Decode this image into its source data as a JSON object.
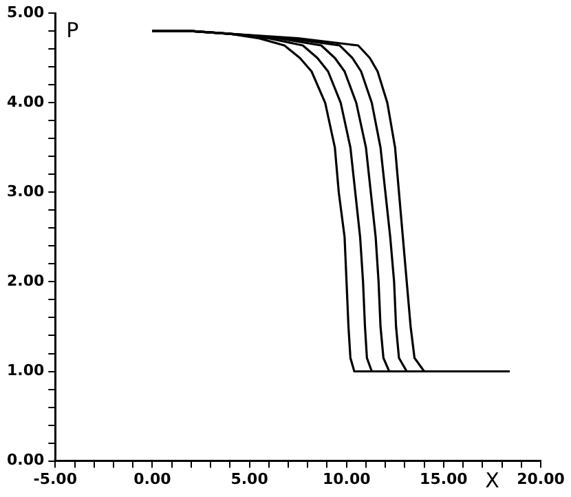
{
  "chart_data": {
    "type": "line",
    "xlabel": "X",
    "ylabel": "P",
    "xlim": [
      -5,
      20
    ],
    "ylim": [
      0,
      5
    ],
    "xticks": [
      {
        "value": -5,
        "label": "-5.00"
      },
      {
        "value": -4,
        "label": null
      },
      {
        "value": -3,
        "label": null
      },
      {
        "value": -2,
        "label": null
      },
      {
        "value": -1,
        "label": null
      },
      {
        "value": 0,
        "label": "0.00"
      },
      {
        "value": 1,
        "label": null
      },
      {
        "value": 2,
        "label": null
      },
      {
        "value": 3,
        "label": null
      },
      {
        "value": 4,
        "label": null
      },
      {
        "value": 5,
        "label": "5.00"
      },
      {
        "value": 6,
        "label": null
      },
      {
        "value": 7,
        "label": null
      },
      {
        "value": 8,
        "label": null
      },
      {
        "value": 9,
        "label": null
      },
      {
        "value": 10,
        "label": "10.00"
      },
      {
        "value": 11,
        "label": null
      },
      {
        "value": 12,
        "label": null
      },
      {
        "value": 13,
        "label": null
      },
      {
        "value": 14,
        "label": null
      },
      {
        "value": 15,
        "label": "15.00"
      },
      {
        "value": 16,
        "label": null
      },
      {
        "value": 17,
        "label": null
      },
      {
        "value": 18,
        "label": null
      },
      {
        "value": 19,
        "label": null
      },
      {
        "value": 20,
        "label": "20.00"
      }
    ],
    "yticks": [
      {
        "value": 0,
        "label": "0.00"
      },
      {
        "value": 0.2,
        "label": null
      },
      {
        "value": 0.4,
        "label": null
      },
      {
        "value": 0.6,
        "label": null
      },
      {
        "value": 0.8,
        "label": null
      },
      {
        "value": 1,
        "label": "1.00"
      },
      {
        "value": 1.2,
        "label": null
      },
      {
        "value": 1.4,
        "label": null
      },
      {
        "value": 1.6,
        "label": null
      },
      {
        "value": 1.8,
        "label": null
      },
      {
        "value": 2,
        "label": "2.00"
      },
      {
        "value": 2.2,
        "label": null
      },
      {
        "value": 2.4,
        "label": null
      },
      {
        "value": 2.6,
        "label": null
      },
      {
        "value": 2.8,
        "label": null
      },
      {
        "value": 3,
        "label": "3.00"
      },
      {
        "value": 3.2,
        "label": null
      },
      {
        "value": 3.4,
        "label": null
      },
      {
        "value": 3.6,
        "label": null
      },
      {
        "value": 3.8,
        "label": null
      },
      {
        "value": 4,
        "label": "4.00"
      },
      {
        "value": 4.2,
        "label": null
      },
      {
        "value": 4.4,
        "label": null
      },
      {
        "value": 4.6,
        "label": null
      },
      {
        "value": 4.8,
        "label": null
      },
      {
        "value": 5,
        "label": "5.00"
      }
    ],
    "marker": "none",
    "line_style": "solid",
    "legend": false,
    "series": [
      {
        "color": "#000000",
        "x": [
          0,
          2,
          4,
          5.5,
          6.8,
          7.6,
          8.2,
          8.9,
          9.4,
          9.6,
          9.9,
          10.0,
          10.1,
          10.2,
          10.4,
          18.4
        ],
        "values": [
          4.8,
          4.8,
          4.77,
          4.72,
          4.64,
          4.5,
          4.35,
          4.0,
          3.5,
          3.0,
          2.5,
          2.0,
          1.5,
          1.15,
          1.0,
          1.0
        ]
      },
      {
        "color": "#000000",
        "x": [
          0,
          2,
          4,
          6.0,
          7.75,
          8.5,
          9.05,
          9.7,
          10.2,
          10.45,
          10.7,
          10.85,
          10.95,
          11.05,
          11.3,
          18.4
        ],
        "values": [
          4.8,
          4.8,
          4.77,
          4.72,
          4.64,
          4.5,
          4.35,
          4.0,
          3.5,
          3.0,
          2.5,
          2.0,
          1.5,
          1.15,
          1.0,
          1.0
        ]
      },
      {
        "color": "#000000",
        "x": [
          0,
          2,
          4,
          6.5,
          8.7,
          9.4,
          9.9,
          10.5,
          11.0,
          11.25,
          11.5,
          11.65,
          11.75,
          11.9,
          12.2,
          18.4
        ],
        "values": [
          4.8,
          4.8,
          4.77,
          4.72,
          4.64,
          4.5,
          4.35,
          4.0,
          3.5,
          3.0,
          2.5,
          2.0,
          1.5,
          1.15,
          1.0,
          1.0
        ]
      },
      {
        "color": "#000000",
        "x": [
          0,
          2,
          4,
          7.0,
          9.65,
          10.3,
          10.75,
          11.3,
          11.75,
          12.0,
          12.25,
          12.45,
          12.55,
          12.7,
          13.1,
          18.4
        ],
        "values": [
          4.8,
          4.8,
          4.77,
          4.72,
          4.64,
          4.5,
          4.35,
          4.0,
          3.5,
          3.0,
          2.5,
          2.0,
          1.5,
          1.15,
          1.0,
          1.0
        ]
      },
      {
        "color": "#000000",
        "x": [
          0,
          2,
          4,
          7.5,
          10.6,
          11.2,
          11.6,
          12.1,
          12.5,
          12.7,
          12.9,
          13.1,
          13.3,
          13.5,
          14.0,
          18.4
        ],
        "values": [
          4.8,
          4.8,
          4.77,
          4.72,
          4.64,
          4.5,
          4.35,
          4.0,
          3.5,
          3.0,
          2.5,
          2.0,
          1.5,
          1.15,
          1.0,
          1.0
        ]
      }
    ]
  }
}
